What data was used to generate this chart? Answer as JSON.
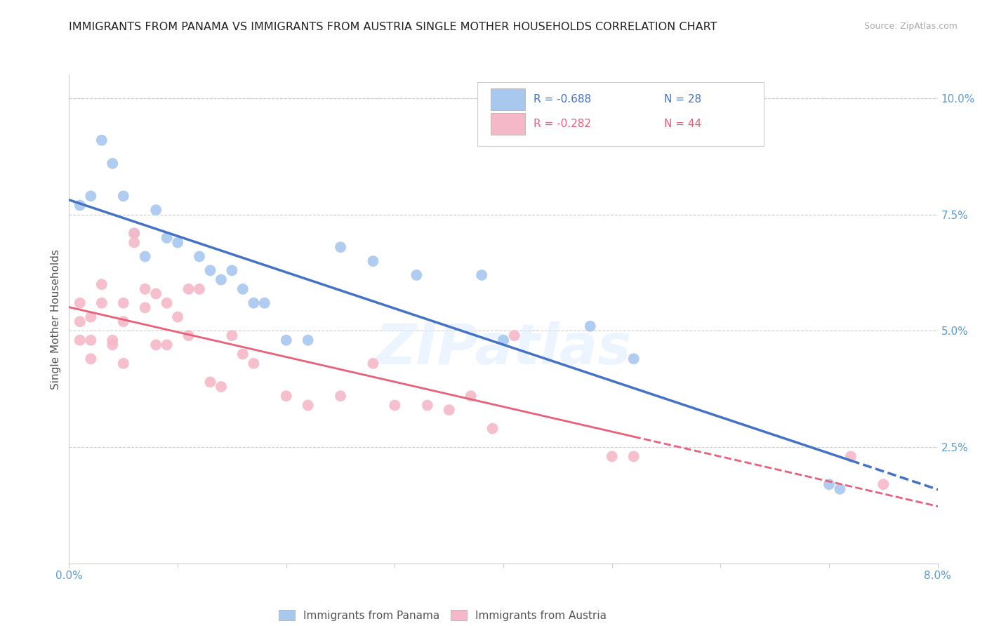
{
  "title": "IMMIGRANTS FROM PANAMA VS IMMIGRANTS FROM AUSTRIA SINGLE MOTHER HOUSEHOLDS CORRELATION CHART",
  "source": "Source: ZipAtlas.com",
  "ylabel": "Single Mother Households",
  "xlim": [
    0.0,
    0.08
  ],
  "ylim": [
    0.0,
    0.105
  ],
  "panama_color": "#a8c8f0",
  "austria_color": "#f5b8c8",
  "panama_line_color": "#4472c4",
  "austria_line_color": "#e8607a",
  "watermark": "ZIPatlas",
  "legend_panama_r": "R = -0.688",
  "legend_panama_n": "N = 28",
  "legend_austria_r": "R = -0.282",
  "legend_austria_n": "N = 44",
  "panama_scatter_x": [
    0.001,
    0.002,
    0.003,
    0.004,
    0.005,
    0.006,
    0.007,
    0.008,
    0.009,
    0.01,
    0.012,
    0.013,
    0.014,
    0.015,
    0.016,
    0.017,
    0.018,
    0.02,
    0.022,
    0.025,
    0.028,
    0.032,
    0.038,
    0.04,
    0.048,
    0.052,
    0.07,
    0.071
  ],
  "panama_scatter_y": [
    0.077,
    0.079,
    0.091,
    0.086,
    0.079,
    0.071,
    0.066,
    0.076,
    0.07,
    0.069,
    0.066,
    0.063,
    0.061,
    0.063,
    0.059,
    0.056,
    0.056,
    0.048,
    0.048,
    0.068,
    0.065,
    0.062,
    0.062,
    0.048,
    0.051,
    0.044,
    0.017,
    0.016
  ],
  "austria_scatter_x": [
    0.001,
    0.001,
    0.001,
    0.002,
    0.002,
    0.002,
    0.003,
    0.003,
    0.004,
    0.004,
    0.005,
    0.005,
    0.005,
    0.006,
    0.006,
    0.007,
    0.007,
    0.008,
    0.008,
    0.009,
    0.009,
    0.01,
    0.011,
    0.011,
    0.012,
    0.013,
    0.014,
    0.015,
    0.016,
    0.017,
    0.02,
    0.022,
    0.025,
    0.028,
    0.03,
    0.033,
    0.035,
    0.037,
    0.039,
    0.041,
    0.05,
    0.052,
    0.072,
    0.075
  ],
  "austria_scatter_y": [
    0.056,
    0.052,
    0.048,
    0.053,
    0.048,
    0.044,
    0.06,
    0.056,
    0.048,
    0.047,
    0.056,
    0.052,
    0.043,
    0.071,
    0.069,
    0.059,
    0.055,
    0.058,
    0.047,
    0.056,
    0.047,
    0.053,
    0.059,
    0.049,
    0.059,
    0.039,
    0.038,
    0.049,
    0.045,
    0.043,
    0.036,
    0.034,
    0.036,
    0.043,
    0.034,
    0.034,
    0.033,
    0.036,
    0.029,
    0.049,
    0.023,
    0.023,
    0.023,
    0.017
  ]
}
